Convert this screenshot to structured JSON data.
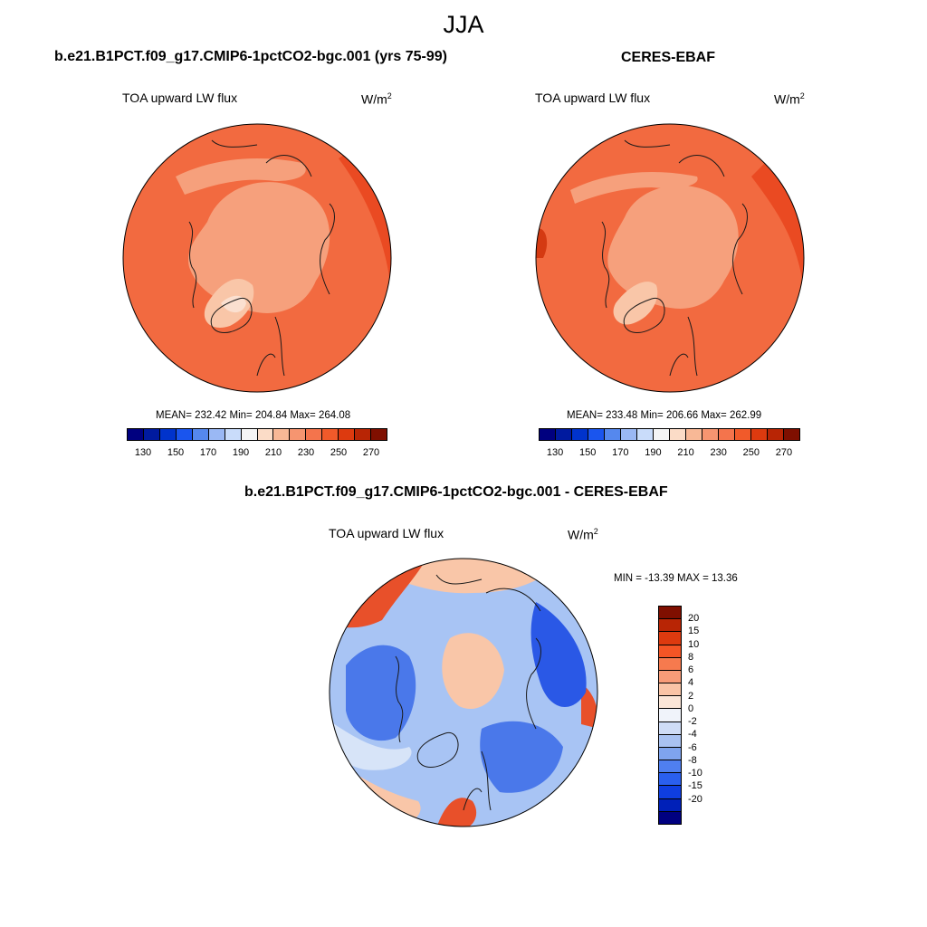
{
  "season": "JJA",
  "panels": {
    "model": {
      "title": "b.e21.B1PCT.f09_g17.CMIP6-1pctCO2-bgc.001 (yrs 75-99)",
      "variable": "TOA upward LW flux",
      "units_base": "W/m",
      "units_exp": "2",
      "stats": "MEAN= 232.42  Min= 204.84  Max= 264.08",
      "mean": 232.42,
      "min": 204.84,
      "max": 264.08
    },
    "obs": {
      "title": "CERES-EBAF",
      "variable": "TOA upward LW flux",
      "units_base": "W/m",
      "units_exp": "2",
      "stats": "MEAN= 233.48  Min= 206.66  Max= 262.99",
      "mean": 233.48,
      "min": 206.66,
      "max": 262.99
    },
    "diff": {
      "title": "b.e21.B1PCT.f09_g17.CMIP6-1pctCO2-bgc.001 - CERES-EBAF",
      "variable": "TOA upward LW flux",
      "units_base": "W/m",
      "units_exp": "2",
      "stats": "MIN = -13.39 MAX =  13.36",
      "min": -13.39,
      "max": 13.36
    }
  },
  "colorbar_abs": {
    "colors": [
      "#00007f",
      "#001a9f",
      "#0033cc",
      "#1a55ee",
      "#5588ee",
      "#9ab8f4",
      "#c9dcfa",
      "#f5f5f5",
      "#fbdcc7",
      "#f8b896",
      "#f69570",
      "#f4744c",
      "#f15a2a",
      "#dd3a0f",
      "#b82505",
      "#7f0f00"
    ],
    "labels": [
      "130",
      "150",
      "170",
      "190",
      "210",
      "230",
      "250",
      "270"
    ]
  },
  "colorbar_diff": {
    "colors": [
      "#7f0f00",
      "#b82505",
      "#dd3a0f",
      "#f45525",
      "#f67a4e",
      "#f89c78",
      "#fac4a6",
      "#fbe6d8",
      "#f0f3fa",
      "#cfdcf6",
      "#a9c2f2",
      "#7fa4ee",
      "#4f7ff0",
      "#2a5fee",
      "#0f3ee0",
      "#0020b8",
      "#000080"
    ],
    "labels": [
      "20",
      "15",
      "10",
      "8",
      "6",
      "4",
      "2",
      "0",
      "-2",
      "-4",
      "-6",
      "-8",
      "-10",
      "-15",
      "-20"
    ]
  },
  "map_colors": {
    "abs_base": "#f26a40",
    "abs_light": "#f6a07c",
    "abs_lighter": "#f9c6a8",
    "abs_dark": "#ea4a22",
    "abs_darker": "#d43a12",
    "abs_pale": "#fbe0d0",
    "diff_base": "#a8c4f4",
    "diff_blue": "#4a78ea",
    "diff_deep": "#2a58e6",
    "diff_pale": "#d7e4f8",
    "diff_warm": "#f9c6a8",
    "diff_red": "#e8502a",
    "coast": "#1a1a1a"
  }
}
